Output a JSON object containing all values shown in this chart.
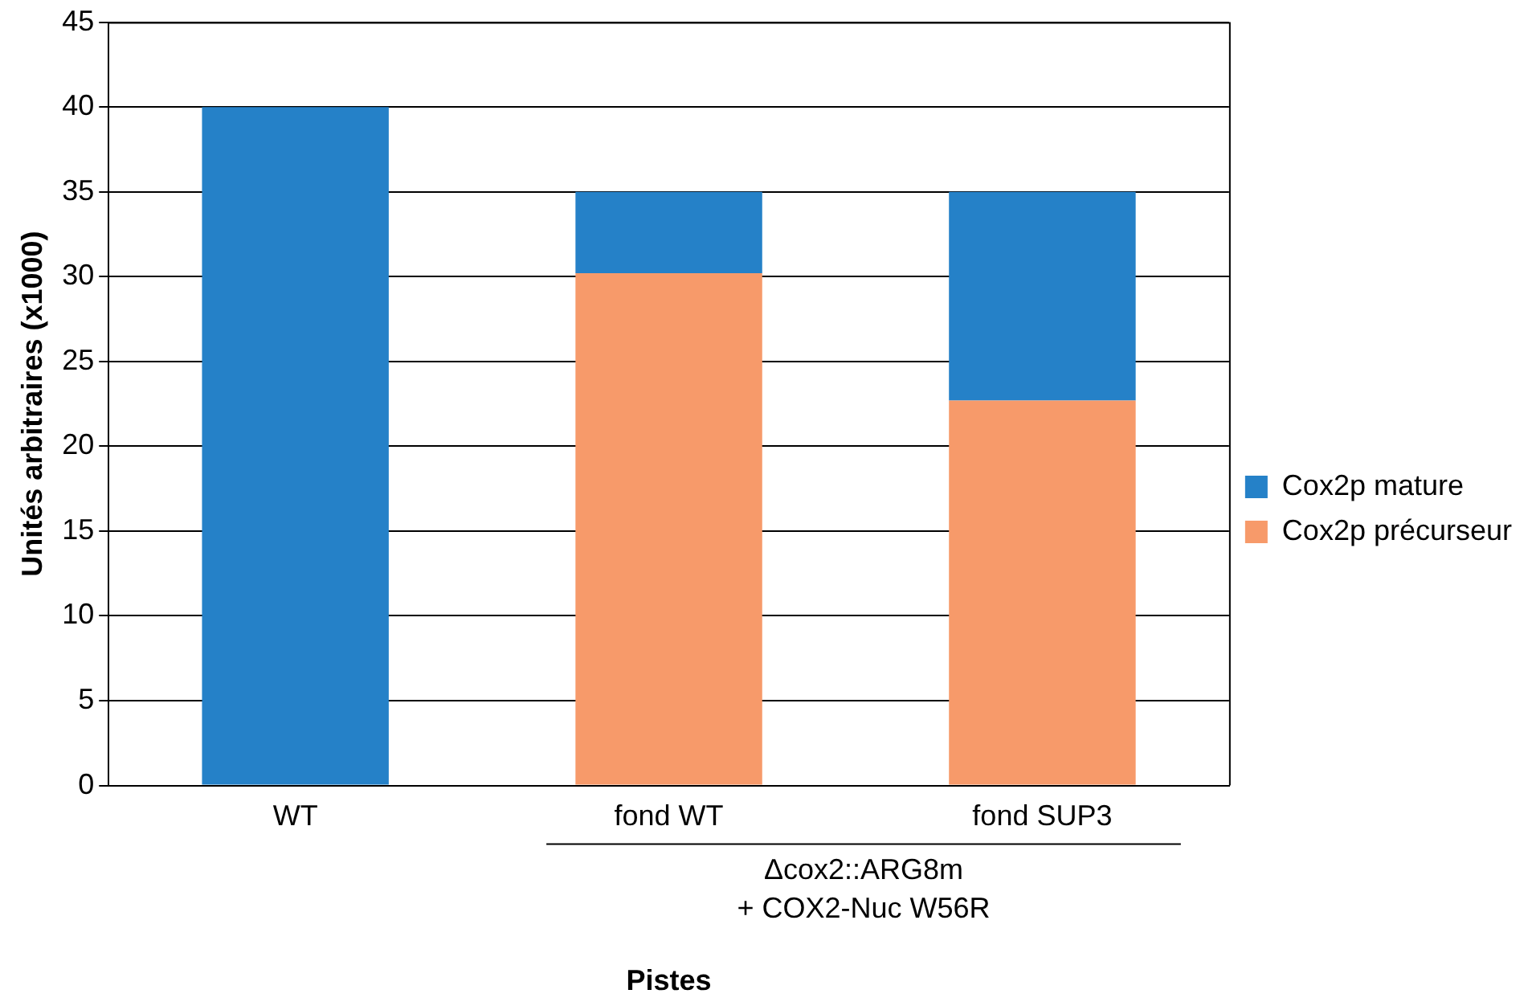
{
  "chart_data": {
    "type": "bar",
    "stacked": true,
    "ylabel": "Unités arbitraires (x1000)",
    "xlabel": "Pistes",
    "categories": [
      "WT",
      "fond WT",
      "fond SUP3"
    ],
    "series": [
      {
        "name": "Cox2p précurseur",
        "color": "#f79a6a",
        "values": [
          null,
          30.2,
          22.7
        ]
      },
      {
        "name": "Cox2p mature",
        "color": "#2581c8",
        "values": [
          40,
          4.8,
          12.3
        ]
      }
    ],
    "ylim": [
      0,
      45
    ],
    "yticks": [
      0,
      5,
      10,
      15,
      20,
      25,
      30,
      35,
      40,
      45
    ],
    "grid": "y",
    "legend": "right",
    "annotations": [
      "Δcox2::ARG8m\n+ COX2-Nuc W56R"
    ]
  }
}
